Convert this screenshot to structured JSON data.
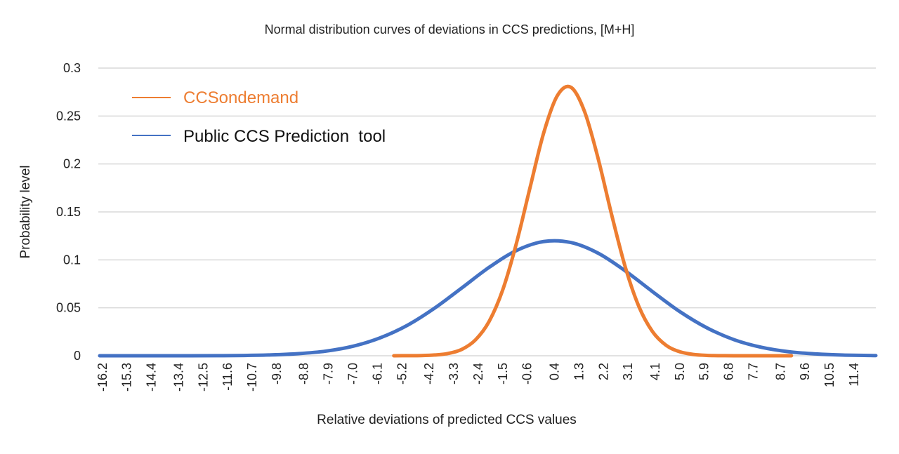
{
  "chart_data": {
    "type": "line",
    "title": "Normal distribution curves of deviations in CCS predictions, [M+H]",
    "xlabel": "Relative deviations of predicted CCS values",
    "ylabel": "Probability level",
    "xlim": [
      -16.35,
      12.2
    ],
    "ylim": [
      0,
      0.3
    ],
    "grid": true,
    "legend_position": "top-left",
    "x_tick_labels": [
      "-16.2",
      "-15.3",
      "-14.4",
      "-13.4",
      "-12.5",
      "-11.6",
      "-10.7",
      "-9.8",
      "-8.8",
      "-7.9",
      "-7.0",
      "-6.1",
      "-5.2",
      "-4.2",
      "-3.3",
      "-2.4",
      "-1.5",
      "-0.6",
      "0.4",
      "1.3",
      "2.2",
      "3.1",
      "4.1",
      "5.0",
      "5.9",
      "6.8",
      "7.7",
      "8.7",
      "9.6",
      "10.5",
      "11.4"
    ],
    "y_tick_labels": [
      "0",
      "0.05",
      "0.1",
      "0.15",
      "0.2",
      "0.25",
      "0.3"
    ],
    "series": [
      {
        "name": "CCSondemand",
        "color": "#ED7D31",
        "x": [
          -5.5,
          -5.0,
          -4.5,
          -4.0,
          -3.5,
          -3.0,
          -2.5,
          -2.0,
          -1.5,
          -1.0,
          -0.5,
          0.0,
          0.5,
          1.0,
          1.5,
          2.0,
          2.5,
          3.0,
          3.5,
          4.0,
          4.5,
          5.0,
          5.5,
          6.0,
          6.5,
          7.0,
          8.0,
          9.1
        ],
        "y": [
          0,
          0.0001,
          0.0002,
          0.0008,
          0.0024,
          0.0067,
          0.0166,
          0.0358,
          0.0687,
          0.117,
          0.175,
          0.232,
          0.271,
          0.28,
          0.255,
          0.206,
          0.147,
          0.0925,
          0.0513,
          0.0252,
          0.0109,
          0.0042,
          0.0014,
          0.0004,
          0.0001,
          0,
          0,
          0
        ]
      },
      {
        "name": "Public CCS Prediction  tool",
        "color": "#4472C4",
        "x": [
          -16.3,
          -15,
          -14,
          -13,
          -12,
          -11,
          -10,
          -9,
          -8,
          -7,
          -6,
          -5,
          -4,
          -3,
          -2,
          -1,
          0,
          1,
          2,
          3,
          4,
          5,
          6,
          7,
          8,
          9,
          10,
          11,
          12,
          12.2
        ],
        "y": [
          0,
          0,
          0,
          0,
          0.0001,
          0.0003,
          0.0009,
          0.0022,
          0.0048,
          0.0099,
          0.0187,
          0.0318,
          0.0497,
          0.0708,
          0.0922,
          0.1097,
          0.1191,
          0.1181,
          0.107,
          0.0885,
          0.0669,
          0.0461,
          0.0291,
          0.0167,
          0.0088,
          0.0042,
          0.0019,
          0.0007,
          0.0003,
          0.0002
        ]
      }
    ]
  }
}
